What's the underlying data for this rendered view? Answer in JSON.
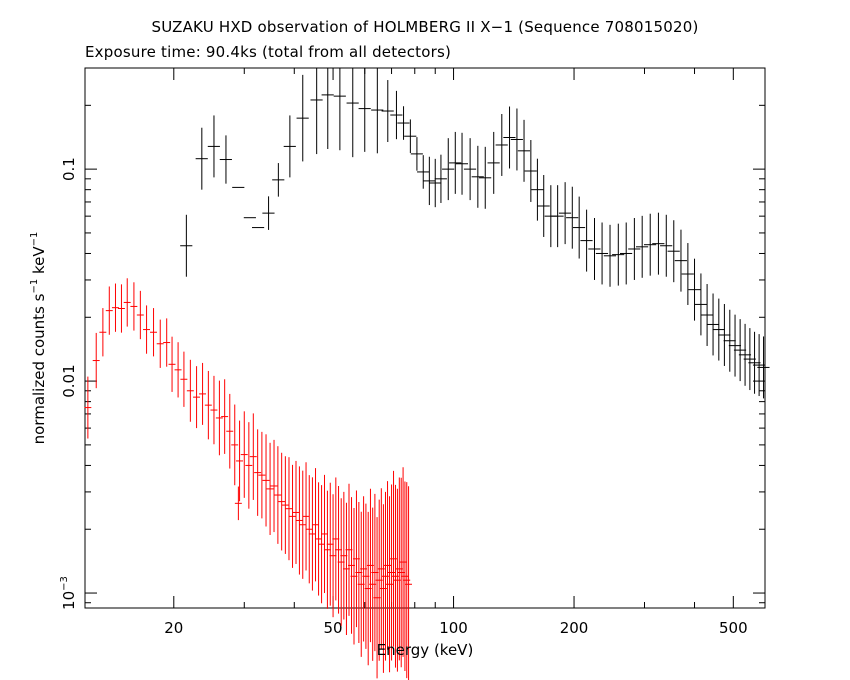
{
  "chart_data": {
    "type": "scatter",
    "title": "SUZAKU HXD observation of HOLMBERG II X−1 (Sequence 708015020)",
    "subtitle": "Exposure time: 90.4ks (total from all detectors)",
    "xlabel": "Energy (keV)",
    "ylabel_main": "normalized counts s",
    "ylabel_mid": "  keV",
    "ylabel_sup": "−1",
    "x_scale": "log",
    "y_scale": "log",
    "xlim": [
      12,
      600
    ],
    "ylim": [
      0.00085,
      0.3
    ],
    "x_ticks": [
      {
        "value": 20,
        "label": "20"
      },
      {
        "value": 50,
        "label": "50"
      },
      {
        "value": 100,
        "label": "100"
      },
      {
        "value": 200,
        "label": "200"
      },
      {
        "value": 500,
        "label": "500"
      }
    ],
    "y_ticks": [
      {
        "value": 0.1,
        "label": "0.1",
        "sup": ""
      },
      {
        "value": 0.01,
        "label": "0.01",
        "sup": ""
      },
      {
        "value": 0.001,
        "label": "10",
        "sup": "−3"
      }
    ],
    "series": [
      {
        "color": "#000000",
        "points": [
          [
            21.5,
            0.0435,
            1.4
          ],
          [
            23.5,
            0.112,
            1.4
          ],
          [
            25.2,
            0.128,
            1.4
          ],
          [
            27.0,
            0.111,
            1.3
          ],
          [
            29.0,
            0.082,
            1.0
          ],
          [
            31.0,
            0.059,
            1.0
          ],
          [
            32.5,
            0.053,
            1.0
          ],
          [
            34.5,
            0.062,
            1.2
          ],
          [
            36.5,
            0.089,
            1.2
          ],
          [
            39.0,
            0.128,
            1.4
          ],
          [
            42.0,
            0.174,
            1.6
          ],
          [
            45.5,
            0.212,
            1.8
          ],
          [
            48.5,
            0.224,
            1.8
          ],
          [
            52.0,
            0.221,
            1.8
          ],
          [
            56.0,
            0.205,
            1.8
          ],
          [
            60.0,
            0.193,
            1.6
          ],
          [
            64.5,
            0.19,
            1.6
          ],
          [
            68.5,
            0.188,
            1.4
          ],
          [
            72.0,
            0.18,
            1.3
          ],
          [
            75.0,
            0.165,
            1.2
          ],
          [
            78.0,
            0.143,
            1.2
          ],
          [
            81.0,
            0.118,
            1.2
          ],
          [
            84.0,
            0.097,
            1.2
          ],
          [
            87.0,
            0.088,
            1.3
          ],
          [
            90.0,
            0.086,
            1.3
          ],
          [
            93.0,
            0.09,
            1.3
          ],
          [
            97.0,
            0.1,
            1.4
          ],
          [
            101.0,
            0.107,
            1.4
          ],
          [
            105.0,
            0.106,
            1.4
          ],
          [
            110.0,
            0.1,
            1.4
          ],
          [
            115.0,
            0.092,
            1.4
          ],
          [
            120.0,
            0.091,
            1.4
          ],
          [
            126.0,
            0.107,
            1.4
          ],
          [
            132.0,
            0.13,
            1.4
          ],
          [
            138.0,
            0.141,
            1.4
          ],
          [
            144.0,
            0.138,
            1.4
          ],
          [
            150.0,
            0.122,
            1.4
          ],
          [
            156.0,
            0.098,
            1.4
          ],
          [
            162.0,
            0.08,
            1.4
          ],
          [
            168.0,
            0.067,
            1.4
          ],
          [
            175.0,
            0.06,
            1.4
          ],
          [
            182.0,
            0.06,
            1.4
          ],
          [
            190.0,
            0.062,
            1.4
          ],
          [
            198.0,
            0.059,
            1.4
          ],
          [
            206.0,
            0.053,
            1.4
          ],
          [
            215.0,
            0.046,
            1.4
          ],
          [
            225.0,
            0.042,
            1.4
          ],
          [
            235.0,
            0.04,
            1.4
          ],
          [
            246.0,
            0.039,
            1.4
          ],
          [
            258.0,
            0.0395,
            1.4
          ],
          [
            270.0,
            0.04,
            1.4
          ],
          [
            283.0,
            0.042,
            1.4
          ],
          [
            296.0,
            0.043,
            1.4
          ],
          [
            310.0,
            0.044,
            1.4
          ],
          [
            325.0,
            0.0445,
            1.4
          ],
          [
            340.0,
            0.0435,
            1.4
          ],
          [
            355.0,
            0.041,
            1.4
          ],
          [
            370.0,
            0.037,
            1.4
          ],
          [
            385.0,
            0.032,
            1.4
          ],
          [
            400.0,
            0.027,
            1.4
          ],
          [
            415.0,
            0.023,
            1.4
          ],
          [
            430.0,
            0.0205,
            1.4
          ],
          [
            445.0,
            0.0185,
            1.4
          ],
          [
            460.0,
            0.0175,
            1.4
          ],
          [
            475.0,
            0.0165,
            1.4
          ],
          [
            490.0,
            0.0155,
            1.4
          ],
          [
            505.0,
            0.0147,
            1.4
          ],
          [
            520.0,
            0.014,
            1.4
          ],
          [
            535.0,
            0.0133,
            1.4
          ],
          [
            550.0,
            0.0127,
            1.4
          ],
          [
            565.0,
            0.0122,
            1.4
          ],
          [
            580.0,
            0.0119,
            1.4
          ],
          [
            595.0,
            0.0116,
            1.4
          ]
        ]
      },
      {
        "color": "#ff0000",
        "points": [
          [
            12.2,
            0.0075,
            1.4
          ],
          [
            12.8,
            0.0125,
            1.35
          ],
          [
            13.3,
            0.017,
            1.3
          ],
          [
            13.8,
            0.0215,
            1.3
          ],
          [
            14.3,
            0.0222,
            1.3
          ],
          [
            14.8,
            0.022,
            1.3
          ],
          [
            15.3,
            0.0235,
            1.3
          ],
          [
            15.9,
            0.0225,
            1.3
          ],
          [
            16.5,
            0.0205,
            1.3
          ],
          [
            17.1,
            0.0175,
            1.3
          ],
          [
            17.8,
            0.017,
            1.3
          ],
          [
            18.5,
            0.015,
            1.3
          ],
          [
            19.2,
            0.0152,
            1.3
          ],
          [
            19.8,
            0.012,
            1.35
          ],
          [
            20.5,
            0.0113,
            1.35
          ],
          [
            21.2,
            0.0102,
            1.35
          ],
          [
            22.0,
            0.009,
            1.4
          ],
          [
            22.8,
            0.0084,
            1.4
          ],
          [
            23.6,
            0.0087,
            1.4
          ],
          [
            24.4,
            0.0077,
            1.45
          ],
          [
            25.2,
            0.0073,
            1.45
          ],
          [
            26.0,
            0.0067,
            1.5
          ],
          [
            26.8,
            0.0068,
            1.5
          ],
          [
            27.6,
            0.0058,
            1.5
          ],
          [
            28.4,
            0.005,
            1.55
          ],
          [
            29.2,
            0.0042,
            1.55
          ],
          [
            29.0,
            0.00265,
            1.2
          ],
          [
            30.0,
            0.0045,
            1.6
          ],
          [
            30.8,
            0.004,
            1.6
          ],
          [
            31.6,
            0.0044,
            1.6
          ],
          [
            32.4,
            0.0037,
            1.6
          ],
          [
            33.2,
            0.0036,
            1.6
          ],
          [
            34.0,
            0.0034,
            1.65
          ],
          [
            34.8,
            0.0031,
            1.65
          ],
          [
            35.6,
            0.0032,
            1.65
          ],
          [
            36.4,
            0.0029,
            1.7
          ],
          [
            37.2,
            0.0027,
            1.7
          ],
          [
            38.0,
            0.0026,
            1.7
          ],
          [
            38.8,
            0.0025,
            1.75
          ],
          [
            39.6,
            0.0023,
            1.75
          ],
          [
            40.4,
            0.0024,
            1.75
          ],
          [
            41.2,
            0.0022,
            1.8
          ],
          [
            42.0,
            0.0021,
            1.8
          ],
          [
            42.8,
            0.0023,
            1.8
          ],
          [
            43.6,
            0.002,
            1.8
          ],
          [
            44.4,
            0.0019,
            1.85
          ],
          [
            45.2,
            0.0021,
            1.85
          ],
          [
            46.0,
            0.0018,
            1.85
          ],
          [
            46.8,
            0.0017,
            1.9
          ],
          [
            47.6,
            0.0019,
            1.9
          ],
          [
            48.4,
            0.0016,
            1.9
          ],
          [
            49.2,
            0.0017,
            1.95
          ],
          [
            50.0,
            0.0015,
            1.95
          ],
          [
            50.8,
            0.0018,
            1.95
          ],
          [
            51.6,
            0.0016,
            2.0
          ],
          [
            52.4,
            0.0014,
            2.0
          ],
          [
            53.2,
            0.0015,
            2.0
          ],
          [
            54.0,
            0.0013,
            2.05
          ],
          [
            54.8,
            0.0016,
            2.05
          ],
          [
            55.6,
            0.00135,
            2.1
          ],
          [
            56.4,
            0.0012,
            2.1
          ],
          [
            57.2,
            0.00145,
            2.1
          ],
          [
            58.0,
            0.00125,
            2.15
          ],
          [
            58.8,
            0.0011,
            2.2
          ],
          [
            59.6,
            0.0013,
            2.2
          ],
          [
            60.4,
            0.0012,
            2.2
          ],
          [
            61.2,
            0.00105,
            2.3
          ],
          [
            62.0,
            0.00135,
            2.3
          ],
          [
            62.8,
            0.0011,
            2.3
          ],
          [
            63.6,
            0.00125,
            2.35
          ],
          [
            64.4,
            0.00095,
            2.4
          ],
          [
            65.2,
            0.00115,
            2.4
          ],
          [
            66.0,
            0.0013,
            2.4
          ],
          [
            66.8,
            0.00105,
            2.5
          ],
          [
            67.6,
            0.0012,
            2.5
          ],
          [
            68.4,
            0.00135,
            2.5
          ],
          [
            69.2,
            0.0011,
            2.6
          ],
          [
            70.0,
            0.00125,
            2.6
          ],
          [
            70.8,
            0.00145,
            2.6
          ],
          [
            71.6,
            0.0012,
            2.7
          ],
          [
            72.4,
            0.00115,
            2.7
          ],
          [
            73.2,
            0.0013,
            2.7
          ],
          [
            74.0,
            0.00125,
            2.8
          ],
          [
            74.8,
            0.0014,
            2.8
          ],
          [
            75.6,
            0.0012,
            2.8
          ],
          [
            76.4,
            0.00115,
            2.9
          ],
          [
            77.2,
            0.0011,
            2.9
          ]
        ]
      }
    ]
  }
}
